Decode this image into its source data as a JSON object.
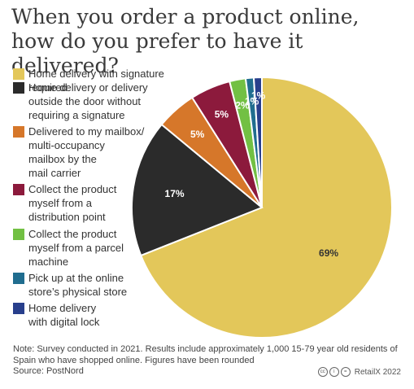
{
  "title": "When you order a product online, how do you prefer to have it delivered?",
  "chart_data": {
    "type": "pie",
    "title": "When you order a product online, how do you prefer to have it delivered?",
    "slices": [
      {
        "label": "Home delivery with signature required",
        "value": 69,
        "display": "69%",
        "color": "#e3c75a"
      },
      {
        "label": "Home delivery or delivery outside the door without requiring a signature",
        "value": 17,
        "display": "17%",
        "color": "#2b2b2b"
      },
      {
        "label": "Delivered to my mailbox/ multi-occupancy mailbox by the mail carrier",
        "value": 5,
        "display": "5%",
        "color": "#d6772a"
      },
      {
        "label": "Collect the product myself from a distribution point",
        "value": 5,
        "display": "5%",
        "color": "#8c1a3c"
      },
      {
        "label": "Collect the product myself from a parcel machine",
        "value": 2,
        "display": "2%",
        "color": "#72c043"
      },
      {
        "label": "Pick up at the online store’s physical store",
        "value": 1,
        "display": "1%",
        "color": "#206d8f"
      },
      {
        "label": "Home delivery with digital lock",
        "value": 1,
        "display": "1%",
        "color": "#283f8c"
      }
    ]
  },
  "legend": [
    {
      "label": "Home delivery with signature required",
      "color": "#e3c75a"
    },
    {
      "label": "Home delivery or delivery\noutside the door without\nrequiring a signature",
      "color": "#2b2b2b"
    },
    {
      "label": "Delivered to my mailbox/\nmulti-occupancy\nmailbox by the\nmail carrier",
      "color": "#d6772a"
    },
    {
      "label": "Collect the product\nmyself from a\ndistribution point",
      "color": "#8c1a3c"
    },
    {
      "label": "Collect the product\nmyself from a parcel\nmachine",
      "color": "#72c043"
    },
    {
      "label": "Pick up at the online\nstore’s physical store",
      "color": "#206d8f"
    },
    {
      "label": "Home delivery\nwith digital lock",
      "color": "#283f8c"
    }
  ],
  "note": "Note: Survey conducted in 2021. Results include approximately 1,000 15-79 year old residents of Spain who have shopped online. Figures have been rounded",
  "source": "Source: PostNord",
  "credit": "RetailX 2022",
  "credit_icons": [
    "cc",
    "by",
    "equals"
  ]
}
